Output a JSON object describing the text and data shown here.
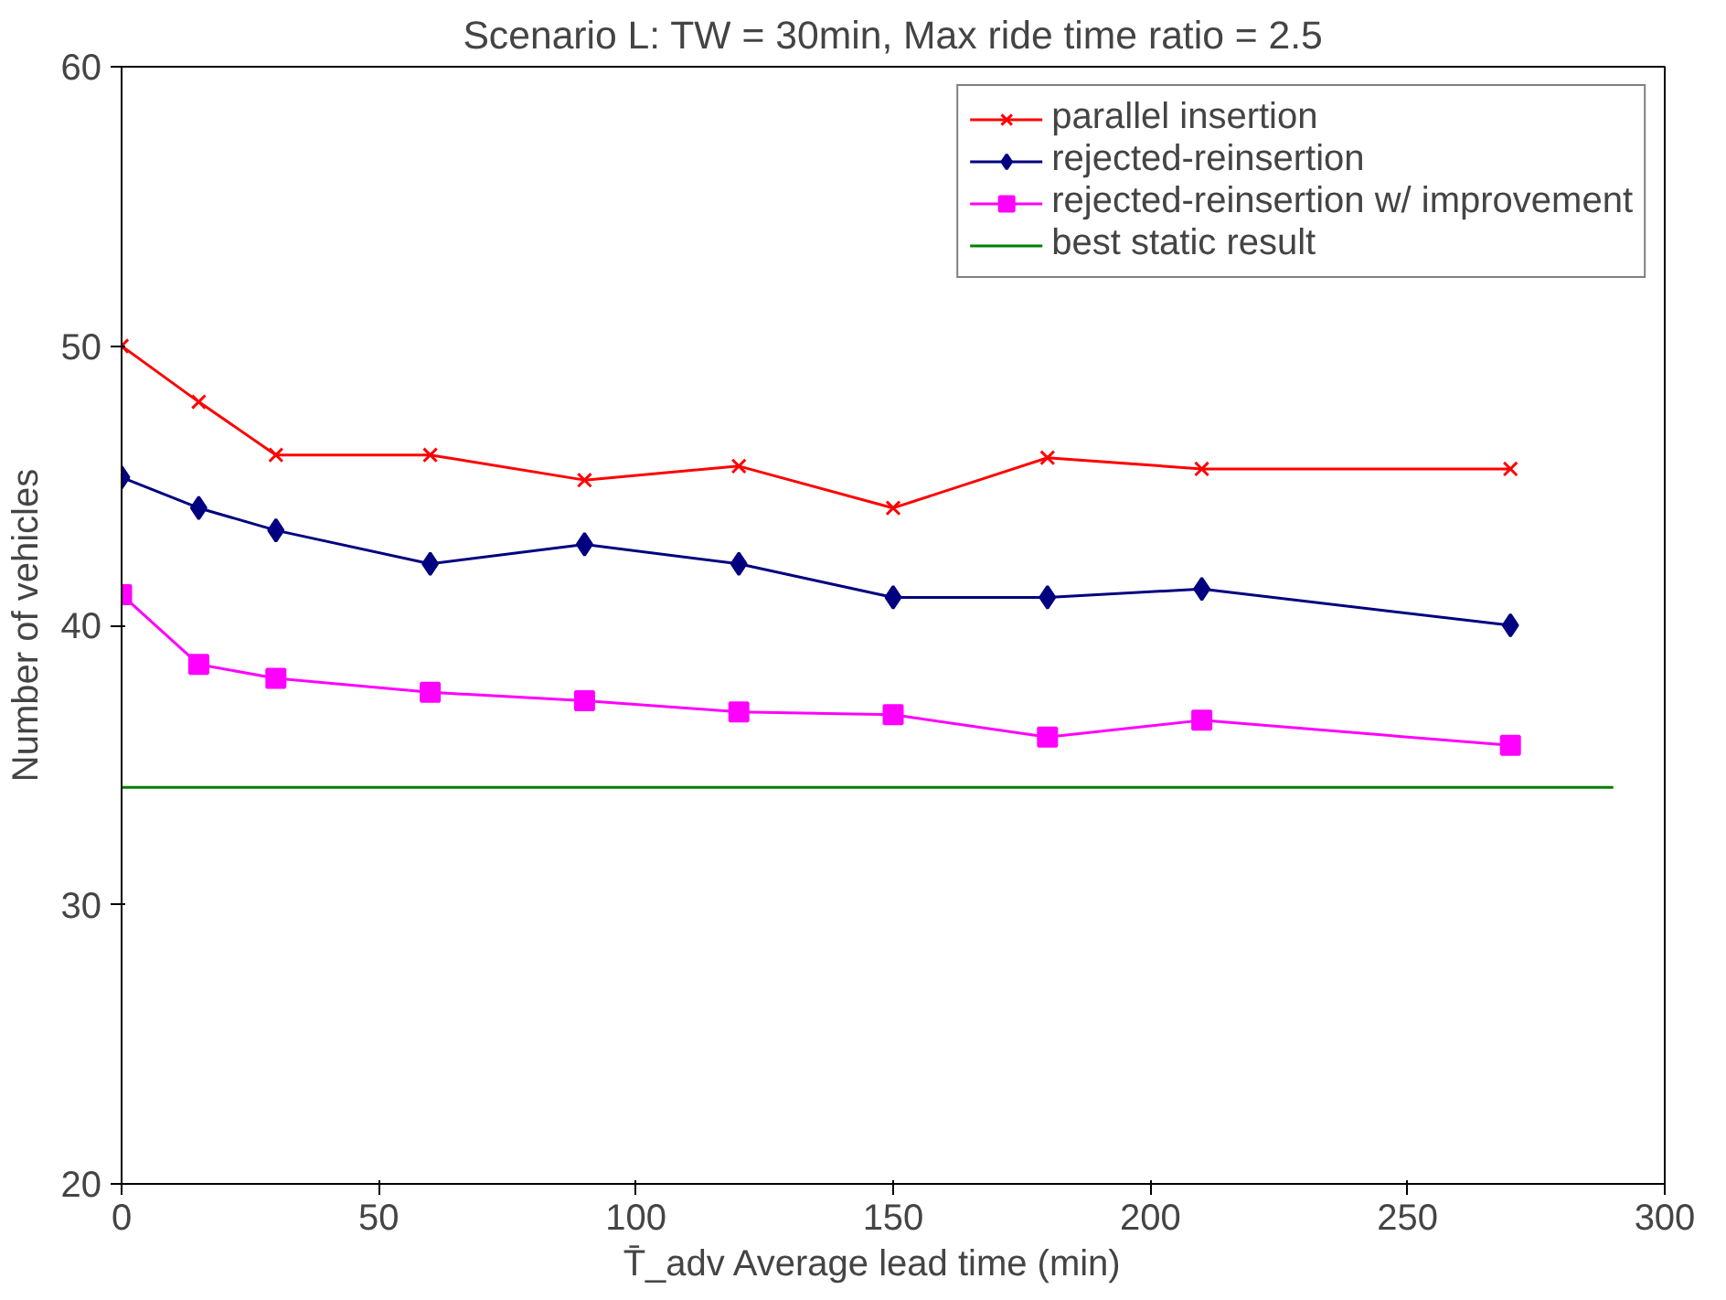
{
  "chart_data": {
    "type": "line",
    "title": "Scenario L: TW = 30min, Max ride time ratio = 2.5",
    "xlabel": "T̄_adv     Average lead time (min)",
    "ylabel": "Number of vehicles",
    "x": [
      0,
      15,
      30,
      60,
      90,
      120,
      150,
      180,
      210,
      270
    ],
    "series": [
      {
        "name": "parallel insertion",
        "color": "#ff0000",
        "marker": "cross",
        "values": [
          50.0,
          48.0,
          46.1,
          46.1,
          45.2,
          45.7,
          44.2,
          46.0,
          45.6,
          45.6
        ]
      },
      {
        "name": "rejected-reinsertion",
        "color": "#000080",
        "marker": "diamond",
        "values": [
          45.3,
          44.2,
          43.4,
          42.2,
          42.9,
          42.2,
          41.0,
          41.0,
          41.3,
          40.0
        ]
      },
      {
        "name": "rejected-reinsertion w/ improvement",
        "color": "#ff00ff",
        "marker": "square",
        "values": [
          41.1,
          38.6,
          38.1,
          37.6,
          37.3,
          36.9,
          36.8,
          36.0,
          36.6,
          35.7
        ]
      },
      {
        "name": "best static result",
        "color": "#008000",
        "marker": "none",
        "x": [
          0,
          290
        ],
        "values": [
          34.2,
          34.2
        ]
      }
    ],
    "xlim": [
      0,
      300
    ],
    "ylim": [
      20,
      60
    ],
    "xticks": [
      0,
      50,
      100,
      150,
      200,
      250,
      300
    ],
    "yticks": [
      20,
      30,
      40,
      50,
      60
    ],
    "grid": false,
    "legend": "top right",
    "line_style": "solid"
  }
}
